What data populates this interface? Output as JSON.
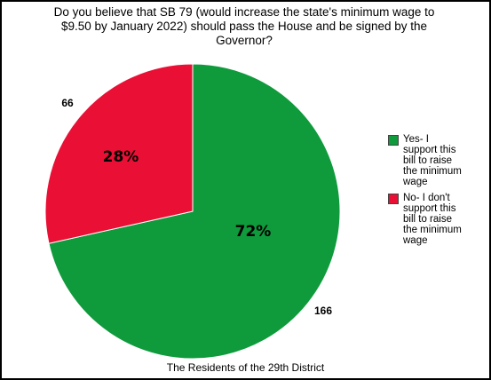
{
  "chart_data": {
    "type": "pie",
    "title_lines": [
      "Do you believe that SB 79 (would increase the state's minimum wage to",
      "$9.50 by January 2022) should pass the House and be signed by the",
      "Governor?"
    ],
    "slices": [
      {
        "label_lines": [
          "Yes- I",
          "support this",
          "bill to raise",
          "the minimum",
          "wage"
        ],
        "count": 166,
        "percent_label": "72%",
        "value": 0.715,
        "color": "#0f9a3c"
      },
      {
        "label_lines": [
          "No- I don't",
          "support this",
          "bill to raise",
          "the minimum",
          "wage"
        ],
        "count": 66,
        "percent_label": "28%",
        "value": 0.285,
        "color": "#ea0f34"
      }
    ],
    "count_labels": [
      "166",
      "66"
    ],
    "footer": "The Residents of the 29th District",
    "legend_position": "right"
  }
}
